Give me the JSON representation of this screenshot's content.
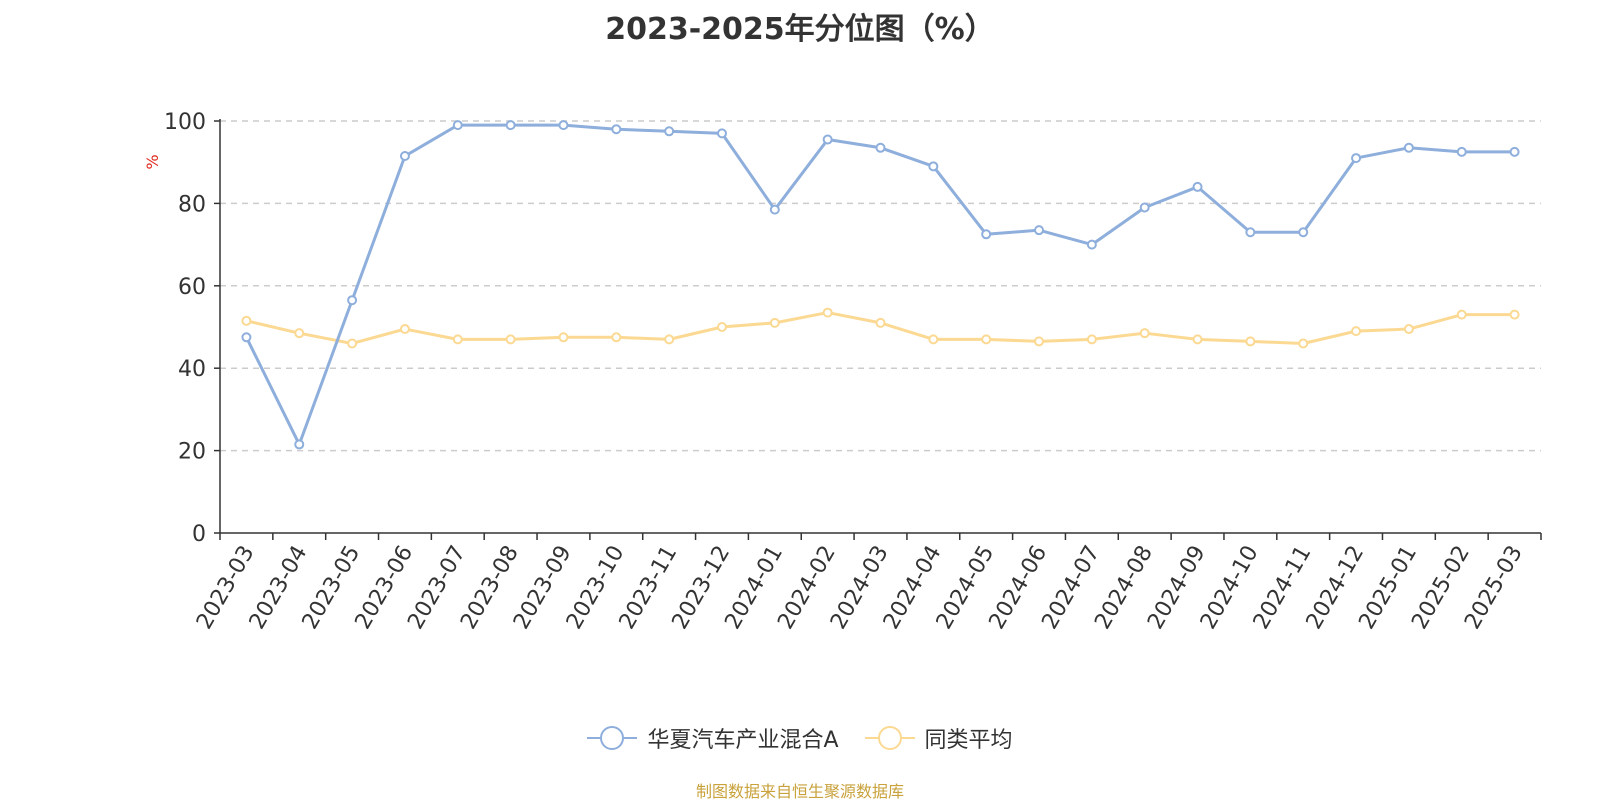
{
  "chart_data": {
    "type": "line",
    "title": "2023-2025年分位图（%）",
    "ylabel": "%",
    "ylim": [
      0,
      100
    ],
    "yticks": [
      0,
      20,
      40,
      60,
      80,
      100
    ],
    "grid": true,
    "legend_position": "bottom-center",
    "categories": [
      "2023-03",
      "2023-04",
      "2023-05",
      "2023-06",
      "2023-07",
      "2023-08",
      "2023-09",
      "2023-10",
      "2023-11",
      "2023-12",
      "2024-01",
      "2024-02",
      "2024-03",
      "2024-04",
      "2024-05",
      "2024-06",
      "2024-07",
      "2024-08",
      "2024-09",
      "2024-10",
      "2024-11",
      "2024-12",
      "2025-01",
      "2025-02",
      "2025-03"
    ],
    "series": [
      {
        "name": "华夏汽车产业混合A",
        "color": "#8eaedc",
        "values": [
          47.5,
          21.5,
          56.5,
          91.5,
          99,
          99,
          99,
          98,
          97.5,
          97,
          78.5,
          95.5,
          93.5,
          89,
          72.5,
          73.5,
          70,
          79,
          84,
          73,
          73,
          91,
          93.5,
          92.5,
          92.5
        ]
      },
      {
        "name": "同类平均",
        "color": "#fbd992",
        "values": [
          51.5,
          48.5,
          46,
          49.5,
          47,
          47,
          47.5,
          47.5,
          47,
          50,
          51,
          53.5,
          51,
          47,
          47,
          46.5,
          47,
          48.5,
          47,
          46.5,
          46,
          49,
          49.5,
          53,
          53
        ]
      }
    ]
  },
  "footer": "制图数据来自恒生聚源数据库"
}
